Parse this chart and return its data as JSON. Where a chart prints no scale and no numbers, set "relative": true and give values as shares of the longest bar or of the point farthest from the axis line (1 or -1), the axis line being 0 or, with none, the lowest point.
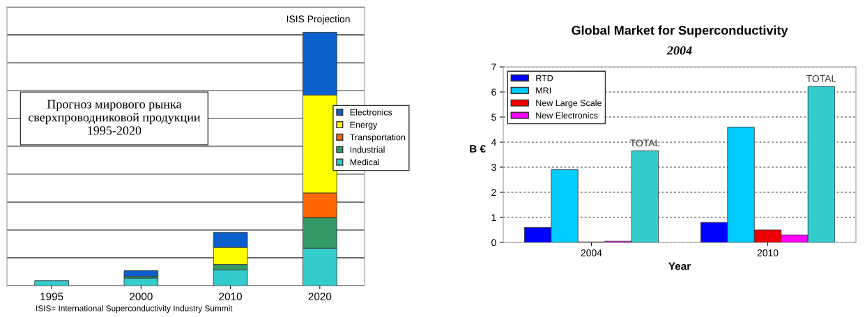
{
  "chart_data": [
    {
      "type": "bar",
      "title": "Прогноз мирового рынка сверхпроводниковой продукции 1995-2020",
      "stacked": true,
      "relative": true,
      "grid": "y",
      "legend": "right",
      "annotations": [
        "ISIS Projection",
        "ISIS= International Superconductivity Industry Summit"
      ],
      "categories": [
        "1995",
        "2000",
        "2010",
        "2020"
      ],
      "series": [
        {
          "name": "Medical",
          "color": "#33cccc",
          "values": [
            0.02,
            0.03,
            0.062,
            0.148
          ]
        },
        {
          "name": "Industrial",
          "color": "#339966",
          "values": [
            0,
            0.007,
            0.022,
            0.12
          ]
        },
        {
          "name": "Transportation",
          "color": "#ff6600",
          "values": [
            0,
            0,
            0,
            0.098
          ]
        },
        {
          "name": "Energy",
          "color": "#ffff00",
          "values": [
            0,
            0,
            0.067,
            0.386
          ]
        },
        {
          "name": "Electronics",
          "color": "#0a5fcc",
          "values": [
            0,
            0.022,
            0.059,
            0.248
          ]
        }
      ]
    },
    {
      "type": "bar",
      "title": "Global Market for Superconductivity",
      "subtitle": "2004",
      "xlabel": "Year",
      "ylabel": "B €",
      "grid": "y",
      "legend": "top left",
      "ylim": [
        0,
        7
      ],
      "yticks": [
        0,
        1,
        2,
        3,
        4,
        5,
        6,
        7
      ],
      "categories": [
        "2004",
        "2010"
      ],
      "series": [
        {
          "name": "RTD",
          "color": "#0000ff",
          "values": [
            0.6,
            0.8
          ]
        },
        {
          "name": "MRI",
          "color": "#00ccff",
          "values": [
            2.9,
            4.6
          ]
        },
        {
          "name": "New Large Scale",
          "color": "#ee0000",
          "values": [
            0.02,
            0.5
          ]
        },
        {
          "name": "New Electronics",
          "color": "#ff00ff",
          "values": [
            0.05,
            0.3
          ]
        },
        {
          "name": "TOTAL",
          "color": "#33cccc",
          "values": [
            3.65,
            6.22
          ]
        }
      ]
    }
  ]
}
